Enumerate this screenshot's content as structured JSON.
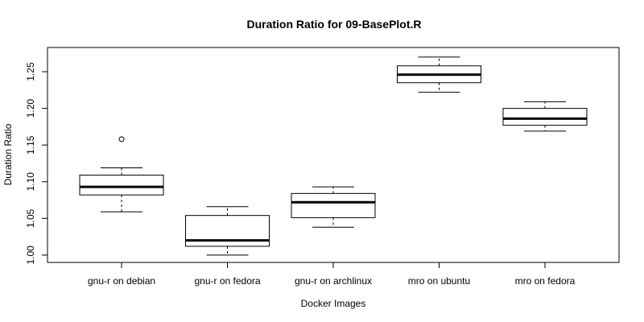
{
  "chart_data": {
    "type": "boxplot",
    "title": "Duration Ratio for 09-BasePlot.R",
    "xlabel": "Docker Images",
    "ylabel": "Duration Ratio",
    "categories": [
      "gnu-r on debian",
      "gnu-r on fedora",
      "gnu-r on archlinux",
      "mro on ubuntu",
      "mro on fedora"
    ],
    "boxes": [
      {
        "whisker_low": 1.059,
        "q1": 1.082,
        "median": 1.093,
        "q3": 1.109,
        "whisker_high": 1.119,
        "outliers": [
          1.158
        ]
      },
      {
        "whisker_low": 1.0,
        "q1": 1.012,
        "median": 1.02,
        "q3": 1.054,
        "whisker_high": 1.066,
        "outliers": []
      },
      {
        "whisker_low": 1.038,
        "q1": 1.051,
        "median": 1.072,
        "q3": 1.084,
        "whisker_high": 1.093,
        "outliers": []
      },
      {
        "whisker_low": 1.222,
        "q1": 1.235,
        "median": 1.246,
        "q3": 1.258,
        "whisker_high": 1.27,
        "outliers": []
      },
      {
        "whisker_low": 1.169,
        "q1": 1.177,
        "median": 1.186,
        "q3": 1.2,
        "whisker_high": 1.209,
        "outliers": []
      }
    ],
    "yticks": [
      "1.00",
      "1.05",
      "1.10",
      "1.15",
      "1.20",
      "1.25"
    ],
    "ylim": [
      0.99,
      1.283
    ],
    "grid": false,
    "colors": {
      "box_fill": "#ffffff",
      "stroke": "#000000"
    }
  }
}
